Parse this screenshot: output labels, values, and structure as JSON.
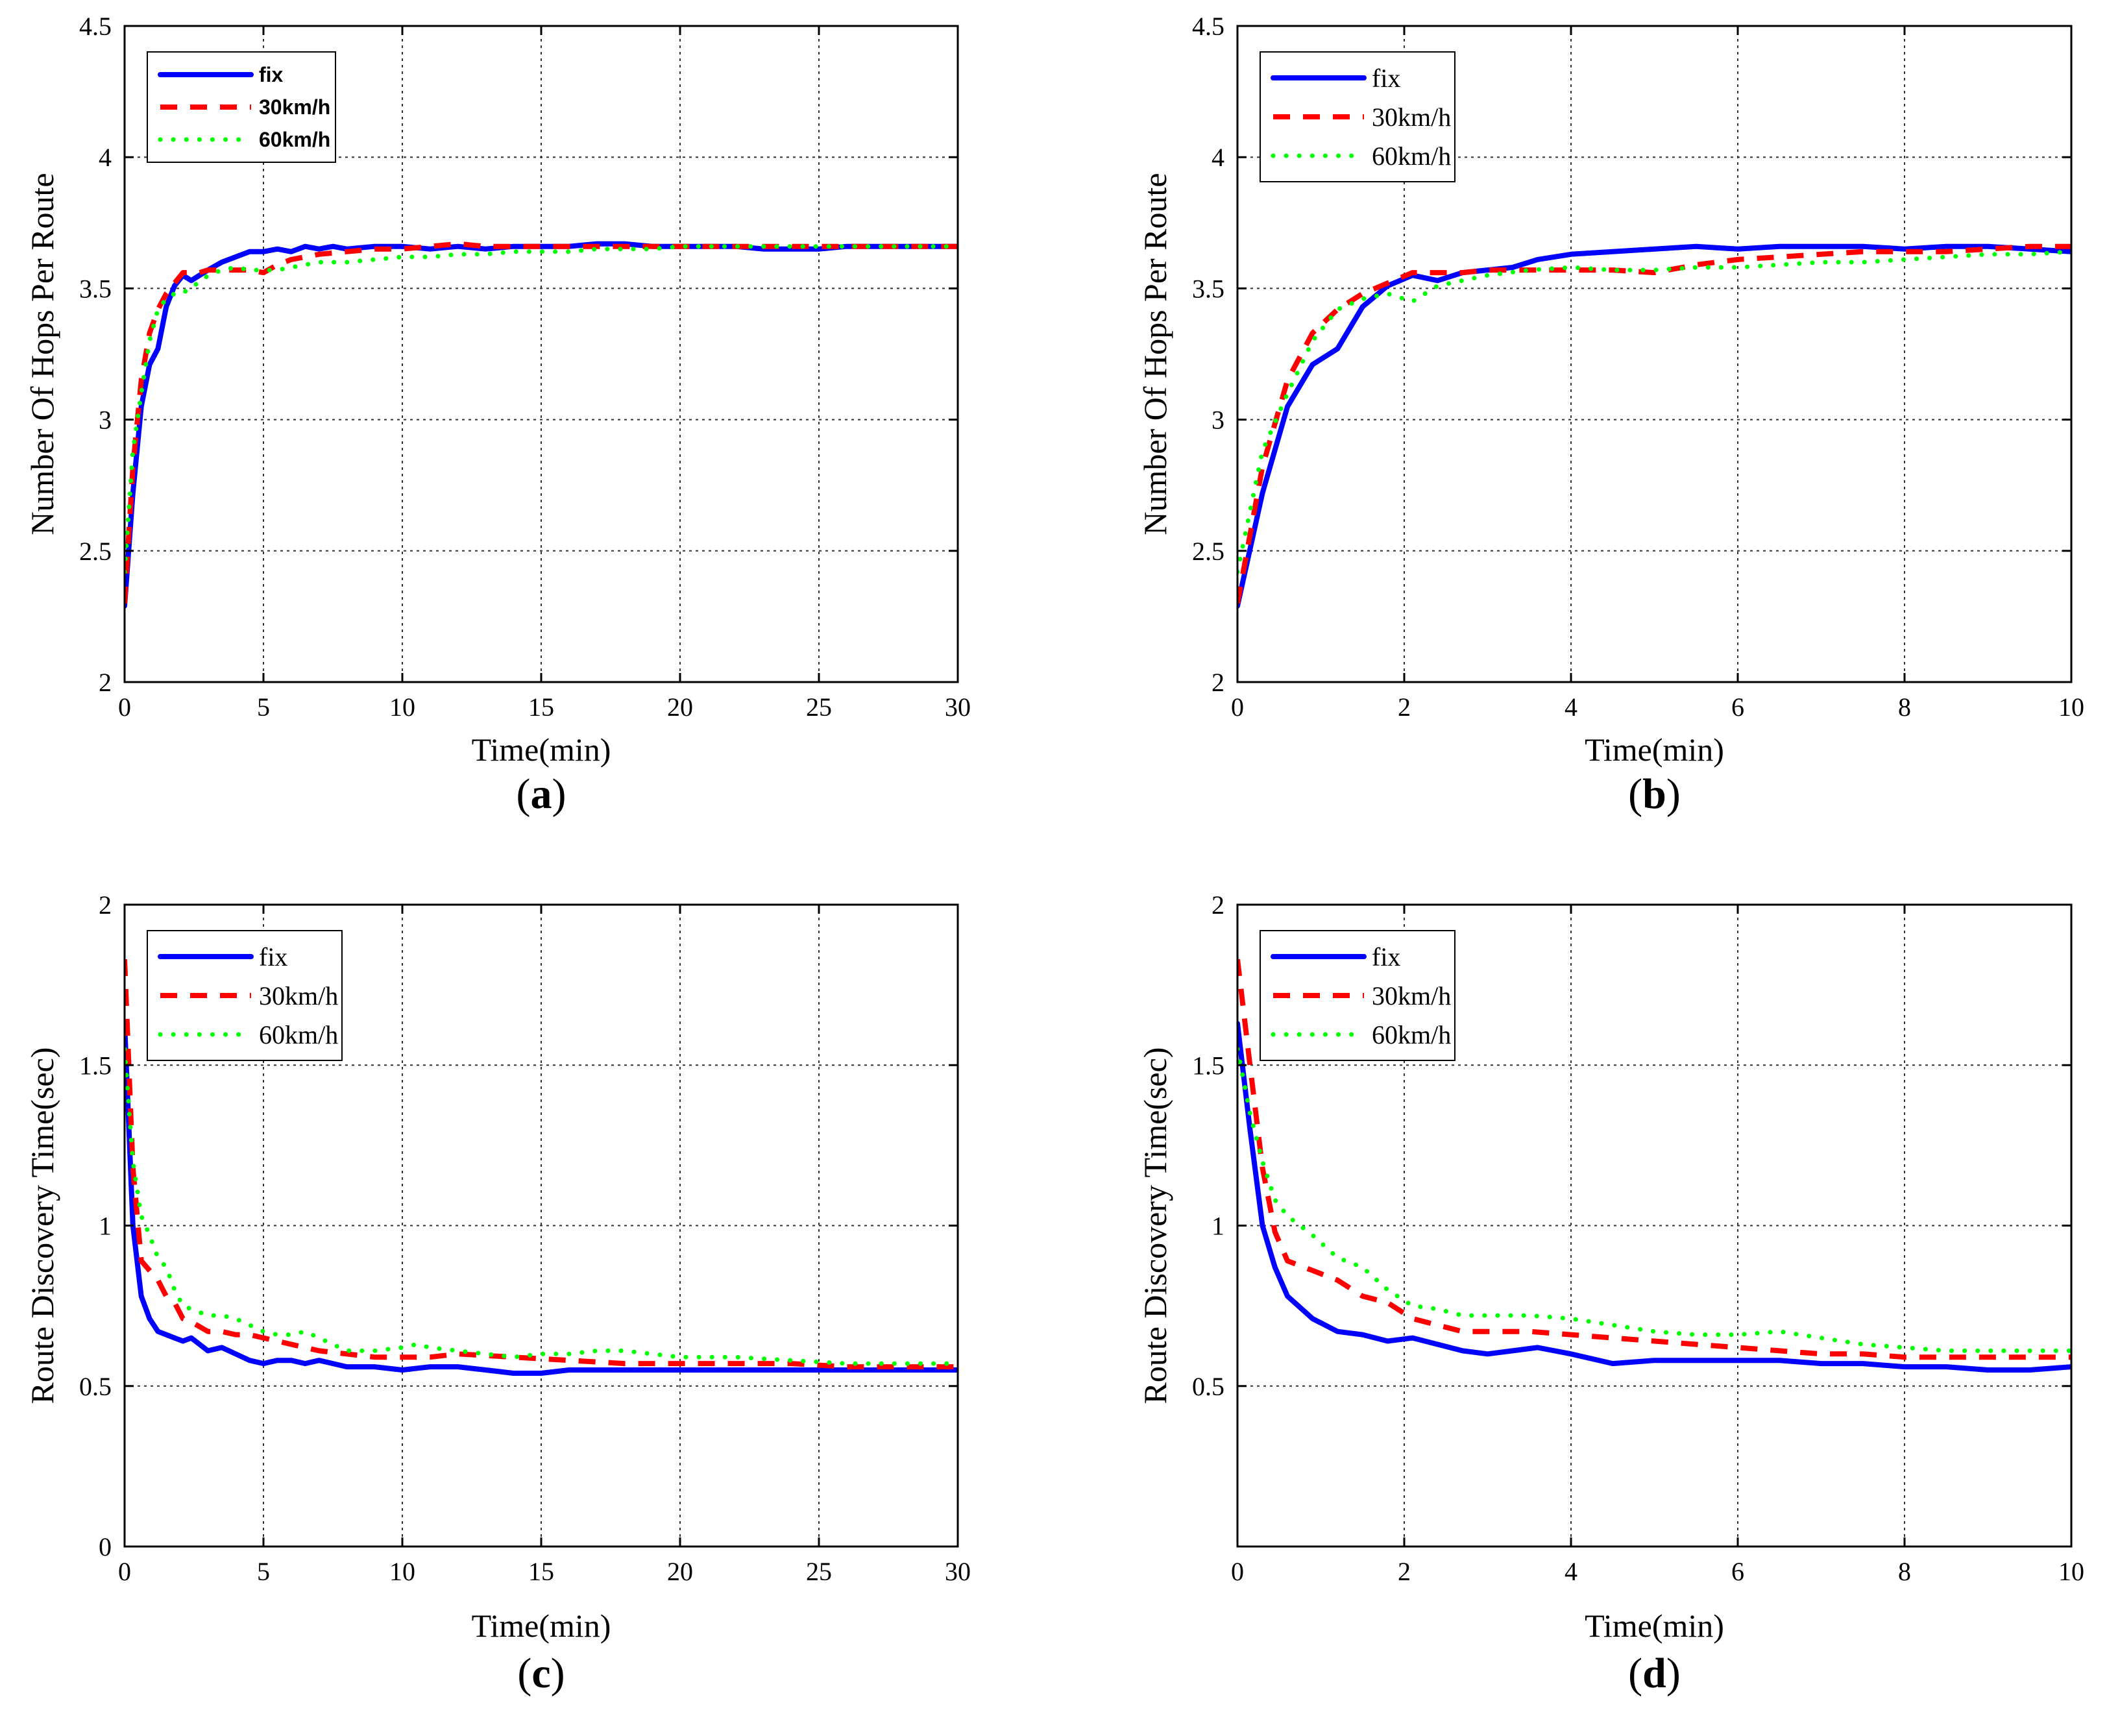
{
  "colors": {
    "fix": "#0000ff",
    "30km/h": "#ff0000",
    "60km/h": "#00ff00",
    "grid": "#333333",
    "axis": "#000000"
  },
  "chart_data": [
    {
      "panel": "(a)",
      "type": "line",
      "xlabel": "Time(min)",
      "ylabel": "Number Of Hops Per Route",
      "xlim": [
        0,
        30
      ],
      "ylim": [
        2,
        4.5
      ],
      "xticks": [
        0,
        5,
        10,
        15,
        20,
        25,
        30
      ],
      "yticks": [
        2,
        2.5,
        3,
        3.5,
        4,
        4.5
      ],
      "grid": true,
      "legend": "top-left",
      "legend_font": "sans",
      "series": [
        {
          "name": "fix",
          "style": "solid",
          "x": [
            0,
            0.3,
            0.6,
            0.9,
            1.2,
            1.5,
            1.8,
            2.1,
            2.4,
            2.7,
            3,
            3.5,
            4,
            4.5,
            5,
            5.5,
            6,
            6.5,
            7,
            7.5,
            8,
            9,
            10,
            11,
            12,
            13,
            14,
            15,
            16,
            17,
            18,
            19,
            20,
            21,
            22,
            23,
            24,
            25,
            26,
            27,
            28,
            29,
            30
          ],
          "y": [
            2.29,
            2.72,
            3.05,
            3.21,
            3.27,
            3.43,
            3.51,
            3.55,
            3.53,
            3.55,
            3.57,
            3.6,
            3.62,
            3.64,
            3.64,
            3.65,
            3.64,
            3.66,
            3.65,
            3.66,
            3.65,
            3.66,
            3.66,
            3.65,
            3.66,
            3.65,
            3.66,
            3.66,
            3.66,
            3.67,
            3.67,
            3.66,
            3.66,
            3.66,
            3.66,
            3.65,
            3.65,
            3.65,
            3.66,
            3.66,
            3.66,
            3.66,
            3.66
          ]
        },
        {
          "name": "30km/h",
          "style": "dashed",
          "x": [
            0,
            0.3,
            0.6,
            0.9,
            1.2,
            1.5,
            1.8,
            2.1,
            2.4,
            2.7,
            3,
            3.5,
            4,
            4.5,
            5,
            5.5,
            6,
            6.5,
            7,
            8,
            9,
            10,
            11,
            12,
            13,
            14,
            15,
            16,
            17,
            18,
            19,
            20,
            21,
            22,
            23,
            24,
            25,
            26,
            27,
            28,
            29,
            30
          ],
          "y": [
            2.3,
            2.82,
            3.15,
            3.33,
            3.42,
            3.48,
            3.52,
            3.56,
            3.56,
            3.56,
            3.57,
            3.57,
            3.57,
            3.57,
            3.56,
            3.59,
            3.61,
            3.62,
            3.63,
            3.64,
            3.65,
            3.65,
            3.66,
            3.67,
            3.66,
            3.66,
            3.66,
            3.66,
            3.66,
            3.66,
            3.66,
            3.66,
            3.66,
            3.66,
            3.66,
            3.66,
            3.66,
            3.66,
            3.66,
            3.66,
            3.66,
            3.66
          ]
        },
        {
          "name": "60km/h",
          "style": "dotted",
          "x": [
            0,
            0.3,
            0.6,
            0.9,
            1.2,
            1.5,
            1.8,
            2.1,
            2.4,
            2.7,
            3,
            3.5,
            4,
            4.5,
            5,
            5.5,
            6,
            7,
            8,
            9,
            10,
            11,
            12,
            13,
            14,
            15,
            16,
            17,
            18,
            19,
            20,
            21,
            22,
            23,
            24,
            25,
            26,
            27,
            28,
            29,
            30
          ],
          "y": [
            2.42,
            2.88,
            3.1,
            3.3,
            3.42,
            3.46,
            3.48,
            3.48,
            3.51,
            3.52,
            3.55,
            3.57,
            3.58,
            3.57,
            3.57,
            3.57,
            3.58,
            3.6,
            3.6,
            3.61,
            3.62,
            3.62,
            3.63,
            3.63,
            3.64,
            3.64,
            3.64,
            3.65,
            3.65,
            3.65,
            3.66,
            3.66,
            3.66,
            3.66,
            3.66,
            3.66,
            3.66,
            3.66,
            3.66,
            3.66,
            3.66
          ]
        }
      ]
    },
    {
      "panel": "(b)",
      "type": "line",
      "xlabel": "Time(min)",
      "ylabel": "Number Of Hops Per Route",
      "xlim": [
        0,
        10
      ],
      "ylim": [
        2,
        4.5
      ],
      "xticks": [
        0,
        2,
        4,
        6,
        8,
        10
      ],
      "yticks": [
        2,
        2.5,
        3,
        3.5,
        4,
        4.5
      ],
      "grid": true,
      "legend": "top-left",
      "legend_font": "serif",
      "series": [
        {
          "name": "fix",
          "style": "solid",
          "x": [
            0,
            0.3,
            0.6,
            0.9,
            1.2,
            1.5,
            1.8,
            2.1,
            2.4,
            2.7,
            3,
            3.3,
            3.6,
            4,
            4.5,
            5,
            5.5,
            6,
            6.5,
            7,
            7.5,
            8,
            8.5,
            9,
            9.5,
            10
          ],
          "y": [
            2.29,
            2.72,
            3.05,
            3.21,
            3.27,
            3.43,
            3.51,
            3.55,
            3.53,
            3.56,
            3.57,
            3.58,
            3.61,
            3.63,
            3.64,
            3.65,
            3.66,
            3.65,
            3.66,
            3.66,
            3.66,
            3.65,
            3.66,
            3.66,
            3.65,
            3.64
          ]
        },
        {
          "name": "30km/h",
          "style": "dashed",
          "x": [
            0,
            0.3,
            0.6,
            0.9,
            1.2,
            1.5,
            1.8,
            2.1,
            2.4,
            2.7,
            3,
            3.5,
            4,
            4.5,
            5,
            5.5,
            6,
            6.5,
            7,
            7.5,
            8,
            8.5,
            9,
            9.5,
            10
          ],
          "y": [
            2.3,
            2.82,
            3.15,
            3.33,
            3.42,
            3.48,
            3.52,
            3.56,
            3.56,
            3.56,
            3.57,
            3.57,
            3.57,
            3.57,
            3.56,
            3.59,
            3.61,
            3.62,
            3.63,
            3.64,
            3.64,
            3.64,
            3.65,
            3.66,
            3.66
          ]
        },
        {
          "name": "60km/h",
          "style": "dotted",
          "x": [
            0,
            0.3,
            0.6,
            0.9,
            1.2,
            1.5,
            1.8,
            2.1,
            2.4,
            2.7,
            3,
            3.5,
            4,
            4.5,
            5,
            5.5,
            6,
            6.5,
            7,
            7.5,
            8,
            8.5,
            9,
            9.5,
            10
          ],
          "y": [
            2.42,
            2.88,
            3.1,
            3.3,
            3.42,
            3.46,
            3.48,
            3.45,
            3.51,
            3.53,
            3.55,
            3.57,
            3.58,
            3.57,
            3.57,
            3.58,
            3.58,
            3.59,
            3.6,
            3.6,
            3.61,
            3.62,
            3.63,
            3.63,
            3.64
          ]
        }
      ]
    },
    {
      "panel": "(c)",
      "type": "line",
      "xlabel": "Time(min)",
      "ylabel": "Route Discovery Time(sec)",
      "xlim": [
        0,
        30
      ],
      "ylim": [
        0,
        2
      ],
      "xticks": [
        0,
        5,
        10,
        15,
        20,
        25,
        30
      ],
      "yticks": [
        0,
        0.5,
        1,
        1.5,
        2
      ],
      "grid": true,
      "legend": "top-left",
      "legend_font": "serif",
      "series": [
        {
          "name": "fix",
          "style": "solid",
          "x": [
            0,
            0.3,
            0.6,
            0.9,
            1.2,
            1.5,
            1.8,
            2.1,
            2.4,
            2.7,
            3,
            3.5,
            4,
            4.5,
            5,
            5.5,
            6,
            6.5,
            7,
            7.5,
            8,
            9,
            10,
            11,
            12,
            13,
            14,
            15,
            16,
            17,
            18,
            19,
            20,
            22,
            24,
            26,
            28,
            30
          ],
          "y": [
            1.63,
            1.0,
            0.78,
            0.71,
            0.67,
            0.66,
            0.65,
            0.64,
            0.65,
            0.63,
            0.61,
            0.62,
            0.6,
            0.58,
            0.57,
            0.58,
            0.58,
            0.57,
            0.58,
            0.57,
            0.56,
            0.56,
            0.55,
            0.56,
            0.56,
            0.55,
            0.54,
            0.54,
            0.55,
            0.55,
            0.55,
            0.55,
            0.55,
            0.55,
            0.55,
            0.55,
            0.55,
            0.55
          ]
        },
        {
          "name": "30km/h",
          "style": "dashed",
          "x": [
            0,
            0.3,
            0.6,
            0.9,
            1.2,
            1.5,
            1.8,
            2.1,
            2.4,
            3,
            3.5,
            4,
            4.5,
            5,
            6,
            7,
            8,
            9,
            10,
            11,
            12,
            14,
            16,
            18,
            20,
            22,
            24,
            26,
            28,
            30
          ],
          "y": [
            1.83,
            1.18,
            0.89,
            0.86,
            0.83,
            0.78,
            0.76,
            0.71,
            0.7,
            0.67,
            0.67,
            0.66,
            0.66,
            0.65,
            0.63,
            0.61,
            0.6,
            0.59,
            0.59,
            0.59,
            0.6,
            0.59,
            0.58,
            0.57,
            0.57,
            0.57,
            0.57,
            0.56,
            0.56,
            0.56
          ]
        },
        {
          "name": "60km/h",
          "style": "dotted",
          "x": [
            0,
            0.3,
            0.6,
            0.9,
            1.2,
            1.5,
            1.8,
            2.1,
            2.4,
            3,
            3.5,
            4,
            4.5,
            5,
            5.5,
            6,
            6.5,
            7,
            7.5,
            8,
            9,
            10,
            10.5,
            11,
            12,
            13,
            14,
            15,
            16,
            17,
            18,
            19,
            20,
            22,
            24,
            26,
            28,
            30
          ],
          "y": [
            1.55,
            1.2,
            1.03,
            0.97,
            0.9,
            0.87,
            0.8,
            0.75,
            0.74,
            0.72,
            0.72,
            0.71,
            0.69,
            0.67,
            0.66,
            0.66,
            0.67,
            0.65,
            0.63,
            0.61,
            0.61,
            0.62,
            0.63,
            0.62,
            0.61,
            0.6,
            0.59,
            0.6,
            0.6,
            0.61,
            0.61,
            0.6,
            0.59,
            0.59,
            0.58,
            0.57,
            0.57,
            0.57
          ]
        }
      ]
    },
    {
      "panel": "(d)",
      "type": "line",
      "xlabel": "Time(min)",
      "ylabel": "Route Discovery Time(sec)",
      "xlim": [
        0,
        10
      ],
      "ylim": [
        0,
        2
      ],
      "xticks": [
        0,
        2,
        4,
        6,
        8,
        10
      ],
      "yticks": [
        0.5,
        1,
        1.5,
        2
      ],
      "grid": true,
      "legend": "top-left",
      "legend_font": "serif",
      "series": [
        {
          "name": "fix",
          "style": "solid",
          "x": [
            0,
            0.15,
            0.3,
            0.45,
            0.6,
            0.9,
            1.2,
            1.5,
            1.8,
            2.1,
            2.4,
            2.7,
            3,
            3.3,
            3.6,
            4,
            4.5,
            5,
            5.5,
            6,
            6.5,
            7,
            7.5,
            8,
            8.5,
            9,
            9.5,
            10
          ],
          "y": [
            1.63,
            1.3,
            1.0,
            0.87,
            0.78,
            0.71,
            0.67,
            0.66,
            0.64,
            0.65,
            0.63,
            0.61,
            0.6,
            0.61,
            0.62,
            0.6,
            0.57,
            0.58,
            0.58,
            0.58,
            0.58,
            0.57,
            0.57,
            0.56,
            0.56,
            0.55,
            0.55,
            0.56
          ]
        },
        {
          "name": "30km/h",
          "style": "dashed",
          "x": [
            0,
            0.15,
            0.3,
            0.45,
            0.6,
            0.9,
            1.2,
            1.5,
            1.8,
            2.1,
            2.4,
            2.7,
            3,
            3.5,
            4,
            4.5,
            5,
            5.5,
            6,
            6.5,
            7,
            7.5,
            8,
            8.5,
            9,
            9.5,
            10
          ],
          "y": [
            1.83,
            1.5,
            1.18,
            0.98,
            0.89,
            0.86,
            0.83,
            0.78,
            0.76,
            0.71,
            0.69,
            0.67,
            0.67,
            0.67,
            0.66,
            0.65,
            0.64,
            0.63,
            0.62,
            0.61,
            0.6,
            0.6,
            0.59,
            0.59,
            0.59,
            0.59,
            0.59
          ]
        },
        {
          "name": "60km/h",
          "style": "dotted",
          "x": [
            0,
            0.15,
            0.3,
            0.45,
            0.6,
            0.9,
            1.2,
            1.5,
            1.8,
            2.1,
            2.4,
            2.7,
            3,
            3.5,
            4,
            4.5,
            5,
            5.5,
            6,
            6.5,
            7,
            7.5,
            8,
            8.5,
            9,
            9.5,
            10
          ],
          "y": [
            1.55,
            1.35,
            1.2,
            1.08,
            1.03,
            0.97,
            0.9,
            0.87,
            0.8,
            0.75,
            0.74,
            0.72,
            0.72,
            0.72,
            0.71,
            0.69,
            0.67,
            0.66,
            0.66,
            0.67,
            0.65,
            0.63,
            0.62,
            0.61,
            0.61,
            0.61,
            0.61
          ]
        }
      ]
    }
  ]
}
